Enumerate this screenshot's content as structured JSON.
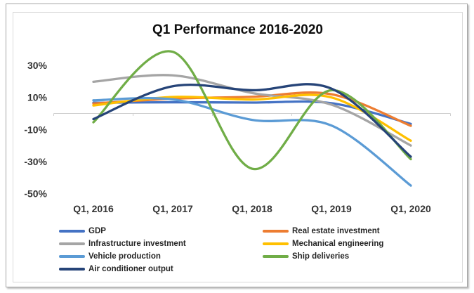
{
  "chart_data": {
    "type": "line",
    "smoothed": true,
    "title": "Q1 Performance 2016-2020",
    "categories": [
      "Q1, 2016",
      "Q1, 2017",
      "Q1, 2018",
      "Q1, 2019",
      "Q1, 2020"
    ],
    "unit": "%",
    "ylim": [
      -55,
      42
    ],
    "y_ticks": [
      {
        "label": "30%",
        "value": 30
      },
      {
        "label": "10%",
        "value": 10
      },
      {
        "label": "-10%",
        "value": -10
      },
      {
        "label": "-30%",
        "value": -30
      },
      {
        "label": "-50%",
        "value": -50
      }
    ],
    "grid": "zero-axis-line-only",
    "legend_position": "bottom-two-columns",
    "axis_color": "#cfcfcf",
    "text_color": "#333333",
    "series": [
      {
        "name": "GDP",
        "color": "#4472C4",
        "values": [
          6.7,
          7.0,
          6.8,
          6.4,
          -6.5
        ]
      },
      {
        "name": "Real estate investment",
        "color": "#ED7D31",
        "values": [
          6.2,
          9.2,
          10.4,
          12.0,
          -7.7
        ]
      },
      {
        "name": "Infrastructure investment",
        "color": "#A5A5A5",
        "values": [
          19.8,
          23.8,
          12.8,
          5.5,
          -20.0
        ]
      },
      {
        "name": "Mechanical engineering",
        "color": "#FFC000",
        "values": [
          5.0,
          10.3,
          8.7,
          10.0,
          -17.0
        ]
      },
      {
        "name": "Vehicle production",
        "color": "#5B9BD5",
        "values": [
          8.2,
          8.8,
          -4.0,
          -7.5,
          -45.0
        ]
      },
      {
        "name": "Ship deliveries",
        "color": "#70AD47",
        "values": [
          -5.5,
          38.5,
          -34.5,
          14.5,
          -28.5
        ]
      },
      {
        "name": "Air conditioner output",
        "color": "#264478",
        "values": [
          -3.5,
          17.0,
          14.5,
          15.5,
          -27.0
        ]
      }
    ]
  }
}
